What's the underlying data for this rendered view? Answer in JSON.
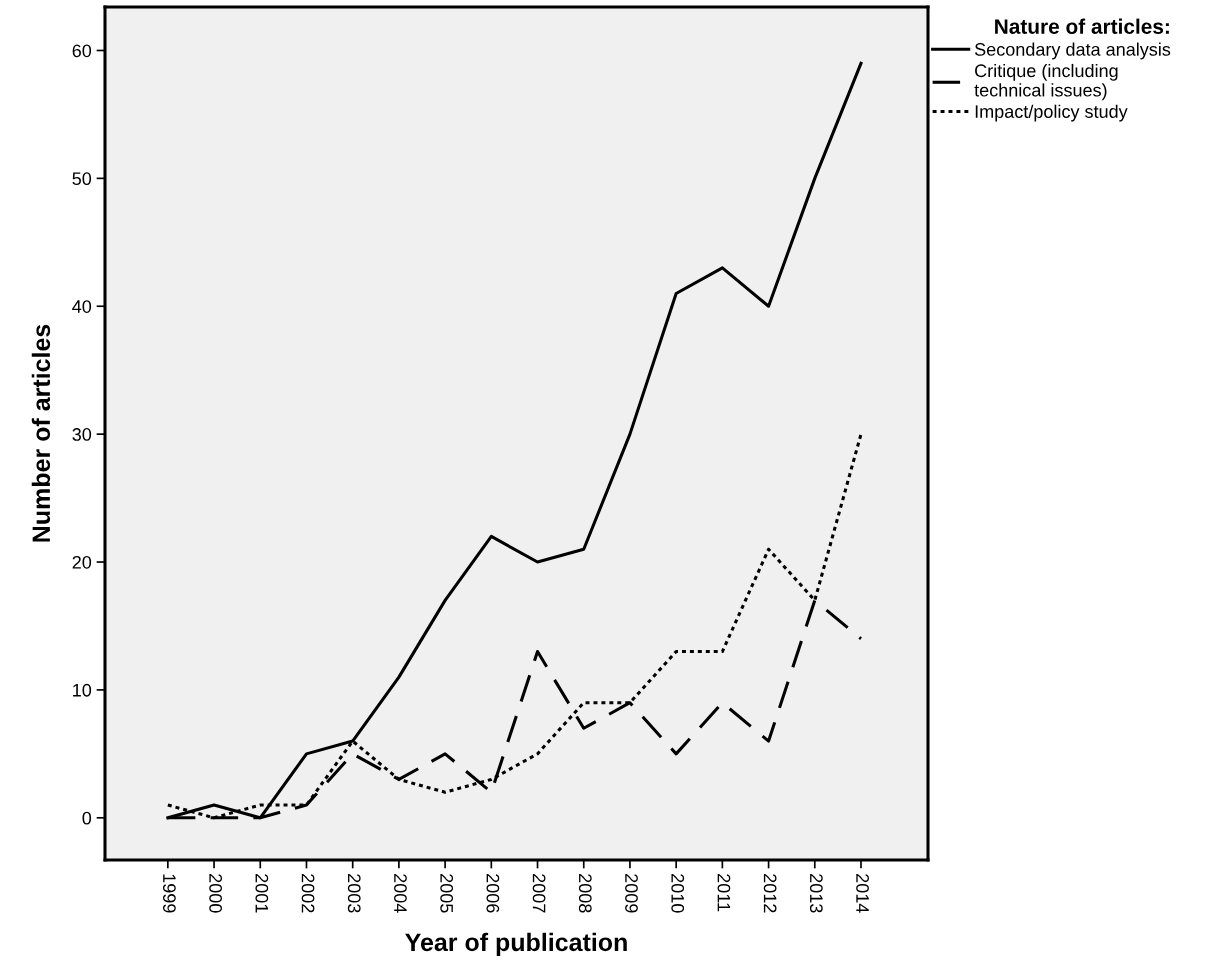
{
  "chart_data": {
    "type": "line",
    "xlabel": "Year of publication",
    "ylabel": "Number of articles",
    "legend_title": "Nature of articles:",
    "legend": "top right",
    "categories": [
      "1999",
      "2000",
      "2001",
      "2002",
      "2003",
      "2004",
      "2005",
      "2006",
      "2007",
      "2008",
      "2009",
      "2010",
      "2011",
      "2012",
      "2013",
      "2014"
    ],
    "ylim": [
      -3.3,
      63.4
    ],
    "yticks": [
      0,
      10,
      20,
      30,
      40,
      50,
      60
    ],
    "grid": false,
    "marker": "none",
    "series": [
      {
        "name": "Secondary data analysis",
        "color": "#000000",
        "line_style": "solid",
        "values": [
          0,
          1,
          0,
          5,
          6,
          11,
          17,
          22,
          20,
          21,
          30,
          41,
          43,
          40,
          50,
          59
        ]
      },
      {
        "name": "Critique (including\ntechnical issues)",
        "color": "#000000",
        "line_style": "dashed",
        "values": [
          0,
          0,
          0,
          1,
          5,
          3,
          5,
          2,
          13,
          7,
          9,
          5,
          9,
          6,
          17,
          14
        ]
      },
      {
        "name": "Impact/policy study",
        "color": "#000000",
        "line_style": "dotted",
        "values": [
          1,
          0,
          1,
          1,
          6,
          3,
          2,
          3,
          5,
          9,
          9,
          13,
          13,
          21,
          17,
          30
        ]
      }
    ]
  }
}
